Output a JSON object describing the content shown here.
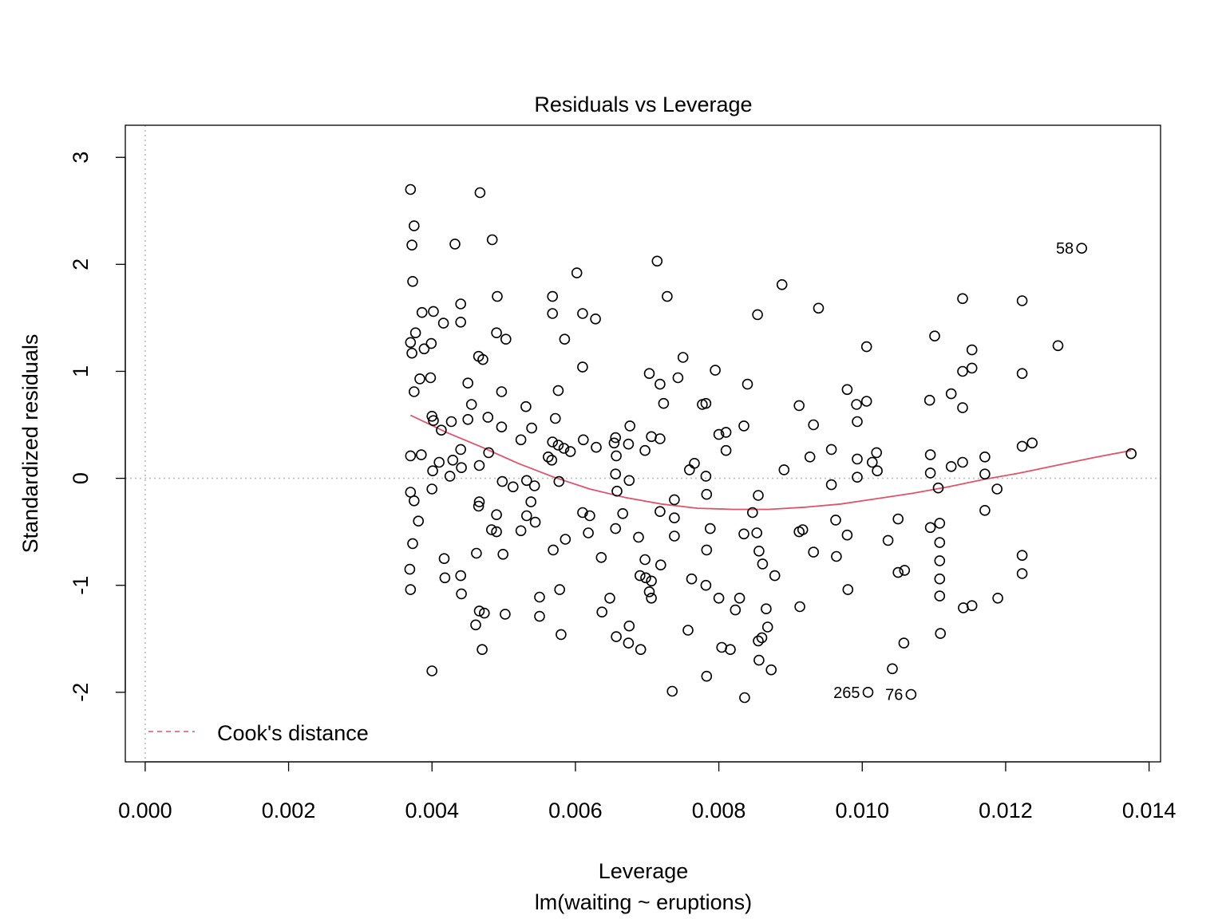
{
  "chart_data": {
    "type": "scatter",
    "title": "Residuals vs Leverage",
    "xlabel": "Leverage",
    "sublabel": "lm(waiting ~ eruptions)",
    "ylabel": "Standardized residuals",
    "xlim": [
      -0.000277,
      0.01416
    ],
    "ylim": [
      -2.65,
      3.3
    ],
    "xticks": [
      "0.000",
      "0.002",
      "0.004",
      "0.006",
      "0.008",
      "0.010",
      "0.012",
      "0.014"
    ],
    "yticks": [
      "-2",
      "-1",
      "0",
      "1",
      "2",
      "3"
    ],
    "grid": false,
    "reference_lines": {
      "x": 0,
      "y": 0,
      "style": "dotted",
      "color": "#bebebe"
    },
    "legend": {
      "position": "bottom-left",
      "entries": [
        {
          "label": "Cook's distance",
          "style": "dashed",
          "color": "#df536b"
        }
      ]
    },
    "marker": "open-circle",
    "smooth_color": "#df536b",
    "labeled_points": [
      {
        "label": "58",
        "x": 0.01306,
        "y": 2.15
      },
      {
        "label": "265",
        "x": 0.01008,
        "y": -2.0
      },
      {
        "label": "76",
        "x": 0.01068,
        "y": -2.02
      }
    ],
    "smooth": {
      "x": [
        0.0037,
        0.0042,
        0.0047,
        0.0052,
        0.0057,
        0.0062,
        0.0067,
        0.0072,
        0.0077,
        0.0082,
        0.0087,
        0.0092,
        0.0097,
        0.0102,
        0.0107,
        0.0112,
        0.0117,
        0.0122,
        0.0127,
        0.0132,
        0.01375
      ],
      "y": [
        0.59,
        0.43,
        0.29,
        0.14,
        0.01,
        -0.1,
        -0.18,
        -0.24,
        -0.28,
        -0.29,
        -0.29,
        -0.27,
        -0.24,
        -0.19,
        -0.14,
        -0.08,
        -0.01,
        0.05,
        0.12,
        0.19,
        0.26
      ]
    },
    "points": [
      [
        0.0037,
        2.7
      ],
      [
        0.00372,
        2.18
      ],
      [
        0.00375,
        2.36
      ],
      [
        0.00373,
        1.84
      ],
      [
        0.0037,
        1.27
      ],
      [
        0.00372,
        1.17
      ],
      [
        0.00377,
        1.36
      ],
      [
        0.00375,
        0.81
      ],
      [
        0.0037,
        0.21
      ],
      [
        0.0037,
        -0.13
      ],
      [
        0.00375,
        -0.21
      ],
      [
        0.00373,
        -0.61
      ],
      [
        0.00369,
        -0.85
      ],
      [
        0.0037,
        -1.04
      ],
      [
        0.00381,
        -0.4
      ],
      [
        0.00383,
        0.93
      ],
      [
        0.00386,
        1.55
      ],
      [
        0.00389,
        1.21
      ],
      [
        0.00385,
        0.22
      ],
      [
        0.00398,
        0.94
      ],
      [
        0.00399,
        1.26
      ],
      [
        0.004,
        0.58
      ],
      [
        0.00402,
        0.54
      ],
      [
        0.00401,
        0.07
      ],
      [
        0.004,
        -0.1
      ],
      [
        0.00402,
        1.56
      ],
      [
        0.004,
        -1.8
      ],
      [
        0.0041,
        0.15
      ],
      [
        0.00413,
        0.45
      ],
      [
        0.00416,
        1.45
      ],
      [
        0.00417,
        -0.75
      ],
      [
        0.00418,
        -0.93
      ],
      [
        0.00425,
        0.02
      ],
      [
        0.00427,
        0.53
      ],
      [
        0.00429,
        0.17
      ],
      [
        0.00432,
        2.19
      ],
      [
        0.0044,
        1.63
      ],
      [
        0.0044,
        1.46
      ],
      [
        0.0044,
        0.27
      ],
      [
        0.00441,
        0.1
      ],
      [
        0.0044,
        -0.91
      ],
      [
        0.00441,
        -1.08
      ],
      [
        0.0045,
        0.89
      ],
      [
        0.0045,
        0.55
      ],
      [
        0.00455,
        0.69
      ],
      [
        0.00461,
        -1.37
      ],
      [
        0.00462,
        -0.7
      ],
      [
        0.00465,
        -0.26
      ],
      [
        0.00466,
        -0.22
      ],
      [
        0.00466,
        0.12
      ],
      [
        0.00465,
        1.14
      ],
      [
        0.00466,
        -1.24
      ],
      [
        0.00471,
        1.11
      ],
      [
        0.0047,
        -1.6
      ],
      [
        0.00473,
        -1.26
      ],
      [
        0.00467,
        2.67
      ],
      [
        0.00478,
        0.57
      ],
      [
        0.00479,
        0.24
      ],
      [
        0.00484,
        2.23
      ],
      [
        0.00483,
        -0.48
      ],
      [
        0.0049,
        -0.34
      ],
      [
        0.0049,
        -0.5
      ],
      [
        0.00491,
        1.7
      ],
      [
        0.0049,
        1.36
      ],
      [
        0.00497,
        0.48
      ],
      [
        0.00497,
        0.81
      ],
      [
        0.00498,
        -0.03
      ],
      [
        0.00499,
        -0.71
      ],
      [
        0.00502,
        -1.27
      ],
      [
        0.00503,
        1.3
      ],
      [
        0.00513,
        -0.08
      ],
      [
        0.00524,
        0.36
      ],
      [
        0.00524,
        -0.49
      ],
      [
        0.00531,
        0.67
      ],
      [
        0.00532,
        -0.02
      ],
      [
        0.00532,
        -0.35
      ],
      [
        0.00538,
        -0.22
      ],
      [
        0.00539,
        0.47
      ],
      [
        0.00543,
        -0.07
      ],
      [
        0.00544,
        -0.41
      ],
      [
        0.0055,
        -1.11
      ],
      [
        0.0055,
        -1.29
      ],
      [
        0.00562,
        0.2
      ],
      [
        0.00567,
        0.17
      ],
      [
        0.00568,
        0.34
      ],
      [
        0.00568,
        1.7
      ],
      [
        0.00568,
        1.54
      ],
      [
        0.00569,
        -0.67
      ],
      [
        0.00572,
        0.56
      ],
      [
        0.00576,
        0.31
      ],
      [
        0.00576,
        0.82
      ],
      [
        0.00577,
        -0.03
      ],
      [
        0.00578,
        -1.04
      ],
      [
        0.0058,
        -1.46
      ],
      [
        0.00584,
        0.28
      ],
      [
        0.00586,
        -0.57
      ],
      [
        0.00585,
        1.3
      ],
      [
        0.00593,
        0.25
      ],
      [
        0.00602,
        1.92
      ],
      [
        0.0061,
        1.54
      ],
      [
        0.00611,
        0.36
      ],
      [
        0.0061,
        1.04
      ],
      [
        0.0061,
        -0.32
      ],
      [
        0.0062,
        -0.35
      ],
      [
        0.00618,
        -0.51
      ],
      [
        0.00629,
        0.29
      ],
      [
        0.00628,
        1.49
      ],
      [
        0.00636,
        -0.74
      ],
      [
        0.00637,
        -1.25
      ],
      [
        0.00648,
        -1.12
      ],
      [
        0.00654,
        0.33
      ],
      [
        0.00656,
        0.38
      ],
      [
        0.00657,
        0.21
      ],
      [
        0.00656,
        0.04
      ],
      [
        0.00658,
        -0.12
      ],
      [
        0.00656,
        -0.47
      ],
      [
        0.00657,
        -1.48
      ],
      [
        0.00666,
        -0.33
      ],
      [
        0.00674,
        -1.54
      ],
      [
        0.00675,
        -1.38
      ],
      [
        0.00674,
        0.32
      ],
      [
        0.00675,
        -0.02
      ],
      [
        0.00676,
        0.49
      ],
      [
        0.00688,
        -0.55
      ],
      [
        0.0069,
        -0.91
      ],
      [
        0.00691,
        -1.6
      ],
      [
        0.00698,
        -0.93
      ],
      [
        0.00697,
        -0.76
      ],
      [
        0.00697,
        0.26
      ],
      [
        0.00703,
        0.98
      ],
      [
        0.00703,
        -1.06
      ],
      [
        0.00706,
        0.39
      ],
      [
        0.00706,
        -0.96
      ],
      [
        0.00706,
        -1.12
      ],
      [
        0.00714,
        2.03
      ],
      [
        0.00718,
        0.88
      ],
      [
        0.00718,
        0.37
      ],
      [
        0.00718,
        -0.31
      ],
      [
        0.00719,
        -0.81
      ],
      [
        0.00723,
        0.7
      ],
      [
        0.00728,
        1.7
      ],
      [
        0.00735,
        -1.99
      ],
      [
        0.00738,
        -0.2
      ],
      [
        0.00738,
        -0.37
      ],
      [
        0.00738,
        -0.54
      ],
      [
        0.00743,
        0.94
      ],
      [
        0.0075,
        1.13
      ],
      [
        0.00757,
        -1.42
      ],
      [
        0.00759,
        0.08
      ],
      [
        0.00766,
        0.14
      ],
      [
        0.00762,
        -0.94
      ],
      [
        0.00777,
        0.69
      ],
      [
        0.00782,
        0.7
      ],
      [
        0.00782,
        0.02
      ],
      [
        0.00783,
        -0.15
      ],
      [
        0.00783,
        -0.67
      ],
      [
        0.00782,
        -1.0
      ],
      [
        0.00783,
        -1.85
      ],
      [
        0.00788,
        -0.47
      ],
      [
        0.00795,
        1.01
      ],
      [
        0.008,
        0.41
      ],
      [
        0.008,
        -1.12
      ],
      [
        0.00804,
        -1.58
      ],
      [
        0.0081,
        0.43
      ],
      [
        0.0081,
        0.26
      ],
      [
        0.00816,
        -1.6
      ],
      [
        0.00823,
        -1.23
      ],
      [
        0.00829,
        -1.12
      ],
      [
        0.00835,
        0.49
      ],
      [
        0.00835,
        -0.52
      ],
      [
        0.00836,
        -2.05
      ],
      [
        0.0084,
        0.88
      ],
      [
        0.00847,
        -0.32
      ],
      [
        0.00854,
        1.53
      ],
      [
        0.00855,
        -0.16
      ],
      [
        0.00853,
        -0.51
      ],
      [
        0.00856,
        -0.68
      ],
      [
        0.00855,
        -1.52
      ],
      [
        0.00856,
        -1.7
      ],
      [
        0.0086,
        -1.49
      ],
      [
        0.00861,
        -0.8
      ],
      [
        0.00866,
        -1.22
      ],
      [
        0.00868,
        -1.39
      ],
      [
        0.00873,
        -1.79
      ],
      [
        0.00878,
        -0.91
      ],
      [
        0.00888,
        1.81
      ],
      [
        0.00891,
        0.08
      ],
      [
        0.00912,
        0.68
      ],
      [
        0.00912,
        -0.5
      ],
      [
        0.00913,
        -1.2
      ],
      [
        0.00917,
        -0.48
      ],
      [
        0.00927,
        0.2
      ],
      [
        0.00932,
        0.5
      ],
      [
        0.00932,
        -0.69
      ],
      [
        0.00939,
        1.59
      ],
      [
        0.00957,
        0.27
      ],
      [
        0.00957,
        -0.06
      ],
      [
        0.00963,
        -0.39
      ],
      [
        0.00964,
        -0.73
      ],
      [
        0.00979,
        0.83
      ],
      [
        0.00979,
        -0.53
      ],
      [
        0.0098,
        -1.04
      ],
      [
        0.00992,
        0.69
      ],
      [
        0.00993,
        0.53
      ],
      [
        0.00993,
        0.18
      ],
      [
        0.00993,
        0.01
      ],
      [
        0.01006,
        1.23
      ],
      [
        0.01006,
        0.72
      ],
      [
        0.01014,
        0.15
      ],
      [
        0.0102,
        0.24
      ],
      [
        0.01021,
        0.07
      ],
      [
        0.01036,
        -0.58
      ],
      [
        0.0105,
        -0.38
      ],
      [
        0.0105,
        -0.88
      ],
      [
        0.01042,
        -1.78
      ],
      [
        0.01058,
        -1.54
      ],
      [
        0.01059,
        -0.86
      ],
      [
        0.01094,
        0.73
      ],
      [
        0.01095,
        0.22
      ],
      [
        0.01095,
        0.05
      ],
      [
        0.01095,
        -0.46
      ],
      [
        0.01101,
        1.33
      ],
      [
        0.01106,
        -0.09
      ],
      [
        0.01108,
        -0.42
      ],
      [
        0.01108,
        -0.6
      ],
      [
        0.01108,
        -0.77
      ],
      [
        0.01108,
        -0.94
      ],
      [
        0.01108,
        -1.1
      ],
      [
        0.01109,
        -1.45
      ],
      [
        0.01124,
        0.79
      ],
      [
        0.01124,
        0.11
      ],
      [
        0.0114,
        1.68
      ],
      [
        0.0114,
        1.0
      ],
      [
        0.0114,
        0.66
      ],
      [
        0.0114,
        0.15
      ],
      [
        0.01141,
        -1.21
      ],
      [
        0.01153,
        1.2
      ],
      [
        0.01153,
        1.03
      ],
      [
        0.01153,
        -1.19
      ],
      [
        0.01171,
        0.2
      ],
      [
        0.01171,
        0.04
      ],
      [
        0.01171,
        -0.3
      ],
      [
        0.01188,
        -0.1
      ],
      [
        0.01189,
        -1.12
      ],
      [
        0.01223,
        1.66
      ],
      [
        0.01223,
        0.98
      ],
      [
        0.01223,
        0.3
      ],
      [
        0.01223,
        -0.72
      ],
      [
        0.01223,
        -0.89
      ],
      [
        0.01237,
        0.33
      ],
      [
        0.01273,
        1.24
      ],
      [
        0.01306,
        2.15
      ],
      [
        0.01008,
        -2.0
      ],
      [
        0.01068,
        -2.02
      ],
      [
        0.01375,
        0.23
      ]
    ]
  }
}
